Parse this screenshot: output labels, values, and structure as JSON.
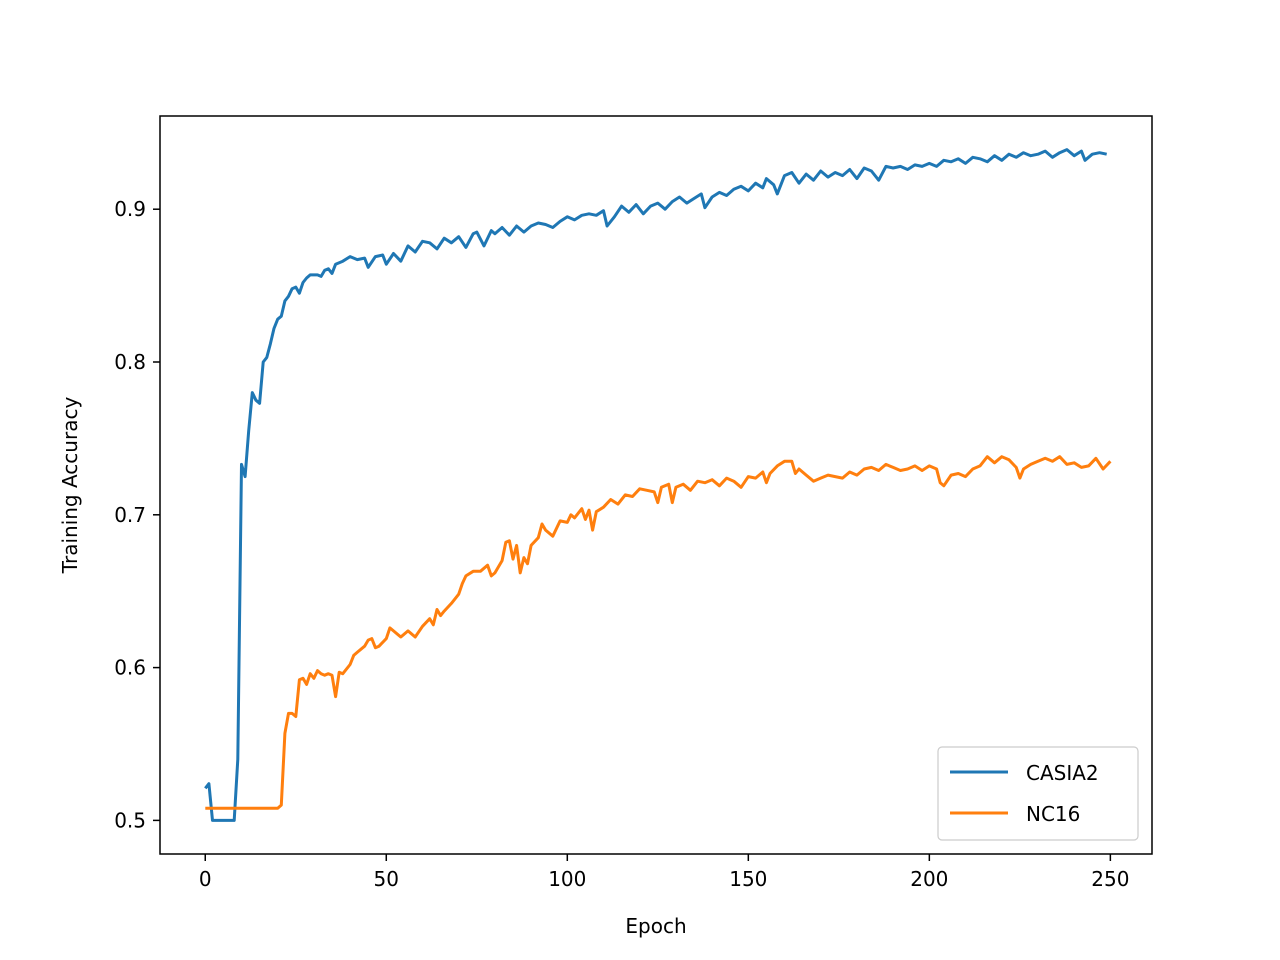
{
  "chart_data": {
    "type": "line",
    "title": "",
    "xlabel": "Epoch",
    "ylabel": "Training Accuracy",
    "xlim": [
      -12.5,
      261.5
    ],
    "ylim": [
      0.478,
      0.961
    ],
    "xticks": [
      0,
      50,
      100,
      150,
      200,
      250
    ],
    "yticks": [
      0.5,
      0.6,
      0.7,
      0.8,
      0.9
    ],
    "ytick_labels": [
      "0.5",
      "0.6",
      "0.7",
      "0.8",
      "0.9"
    ],
    "grid": false,
    "legend_position": "lower-right",
    "series": [
      {
        "name": "CASIA2",
        "color": "#1f77b4",
        "points": [
          [
            0,
            0.521
          ],
          [
            1,
            0.524
          ],
          [
            2,
            0.5
          ],
          [
            3,
            0.5
          ],
          [
            5,
            0.5
          ],
          [
            8,
            0.5
          ],
          [
            9,
            0.54
          ],
          [
            10,
            0.733
          ],
          [
            11,
            0.725
          ],
          [
            12,
            0.755
          ],
          [
            13,
            0.78
          ],
          [
            14,
            0.775
          ],
          [
            15,
            0.773
          ],
          [
            16,
            0.8
          ],
          [
            17,
            0.803
          ],
          [
            18,
            0.812
          ],
          [
            19,
            0.822
          ],
          [
            20,
            0.828
          ],
          [
            21,
            0.83
          ],
          [
            22,
            0.84
          ],
          [
            23,
            0.843
          ],
          [
            24,
            0.848
          ],
          [
            25,
            0.849
          ],
          [
            26,
            0.845
          ],
          [
            27,
            0.852
          ],
          [
            28,
            0.855
          ],
          [
            29,
            0.857
          ],
          [
            30,
            0.857
          ],
          [
            31,
            0.857
          ],
          [
            32,
            0.856
          ],
          [
            33,
            0.86
          ],
          [
            34,
            0.861
          ],
          [
            35,
            0.858
          ],
          [
            36,
            0.864
          ],
          [
            38,
            0.866
          ],
          [
            40,
            0.869
          ],
          [
            42,
            0.867
          ],
          [
            44,
            0.868
          ],
          [
            45,
            0.862
          ],
          [
            47,
            0.869
          ],
          [
            49,
            0.87
          ],
          [
            50,
            0.864
          ],
          [
            52,
            0.871
          ],
          [
            54,
            0.866
          ],
          [
            56,
            0.876
          ],
          [
            58,
            0.872
          ],
          [
            60,
            0.879
          ],
          [
            62,
            0.878
          ],
          [
            64,
            0.874
          ],
          [
            66,
            0.881
          ],
          [
            68,
            0.878
          ],
          [
            70,
            0.882
          ],
          [
            72,
            0.875
          ],
          [
            74,
            0.884
          ],
          [
            75,
            0.885
          ],
          [
            77,
            0.876
          ],
          [
            79,
            0.886
          ],
          [
            80,
            0.884
          ],
          [
            82,
            0.888
          ],
          [
            84,
            0.883
          ],
          [
            86,
            0.889
          ],
          [
            88,
            0.885
          ],
          [
            90,
            0.889
          ],
          [
            92,
            0.891
          ],
          [
            94,
            0.89
          ],
          [
            96,
            0.888
          ],
          [
            98,
            0.892
          ],
          [
            100,
            0.895
          ],
          [
            102,
            0.893
          ],
          [
            104,
            0.896
          ],
          [
            106,
            0.897
          ],
          [
            108,
            0.896
          ],
          [
            110,
            0.899
          ],
          [
            111,
            0.889
          ],
          [
            113,
            0.895
          ],
          [
            115,
            0.902
          ],
          [
            117,
            0.898
          ],
          [
            119,
            0.903
          ],
          [
            121,
            0.897
          ],
          [
            123,
            0.902
          ],
          [
            125,
            0.904
          ],
          [
            127,
            0.9
          ],
          [
            129,
            0.905
          ],
          [
            131,
            0.908
          ],
          [
            133,
            0.904
          ],
          [
            135,
            0.907
          ],
          [
            137,
            0.91
          ],
          [
            138,
            0.901
          ],
          [
            140,
            0.908
          ],
          [
            142,
            0.911
          ],
          [
            144,
            0.909
          ],
          [
            146,
            0.913
          ],
          [
            148,
            0.915
          ],
          [
            150,
            0.912
          ],
          [
            152,
            0.917
          ],
          [
            154,
            0.914
          ],
          [
            155,
            0.92
          ],
          [
            157,
            0.916
          ],
          [
            158,
            0.91
          ],
          [
            160,
            0.922
          ],
          [
            162,
            0.924
          ],
          [
            164,
            0.917
          ],
          [
            166,
            0.923
          ],
          [
            168,
            0.919
          ],
          [
            170,
            0.925
          ],
          [
            172,
            0.921
          ],
          [
            174,
            0.924
          ],
          [
            176,
            0.922
          ],
          [
            178,
            0.926
          ],
          [
            180,
            0.92
          ],
          [
            182,
            0.927
          ],
          [
            184,
            0.925
          ],
          [
            186,
            0.919
          ],
          [
            188,
            0.928
          ],
          [
            190,
            0.927
          ],
          [
            192,
            0.928
          ],
          [
            194,
            0.926
          ],
          [
            196,
            0.929
          ],
          [
            198,
            0.928
          ],
          [
            200,
            0.93
          ],
          [
            202,
            0.928
          ],
          [
            204,
            0.932
          ],
          [
            206,
            0.931
          ],
          [
            208,
            0.933
          ],
          [
            210,
            0.93
          ],
          [
            212,
            0.934
          ],
          [
            214,
            0.933
          ],
          [
            216,
            0.931
          ],
          [
            218,
            0.935
          ],
          [
            220,
            0.932
          ],
          [
            222,
            0.936
          ],
          [
            224,
            0.934
          ],
          [
            226,
            0.937
          ],
          [
            228,
            0.935
          ],
          [
            230,
            0.936
          ],
          [
            232,
            0.938
          ],
          [
            234,
            0.934
          ],
          [
            236,
            0.937
          ],
          [
            238,
            0.939
          ],
          [
            240,
            0.935
          ],
          [
            242,
            0.938
          ],
          [
            243,
            0.932
          ],
          [
            245,
            0.936
          ],
          [
            247,
            0.937
          ],
          [
            249,
            0.936
          ]
        ]
      },
      {
        "name": "NC16",
        "color": "#ff7f0e",
        "points": [
          [
            0,
            0.508
          ],
          [
            5,
            0.508
          ],
          [
            10,
            0.508
          ],
          [
            15,
            0.508
          ],
          [
            20,
            0.508
          ],
          [
            21,
            0.51
          ],
          [
            22,
            0.557
          ],
          [
            23,
            0.57
          ],
          [
            24,
            0.57
          ],
          [
            25,
            0.568
          ],
          [
            26,
            0.592
          ],
          [
            27,
            0.593
          ],
          [
            28,
            0.589
          ],
          [
            29,
            0.596
          ],
          [
            30,
            0.593
          ],
          [
            31,
            0.598
          ],
          [
            32,
            0.596
          ],
          [
            33,
            0.595
          ],
          [
            34,
            0.596
          ],
          [
            35,
            0.595
          ],
          [
            36,
            0.581
          ],
          [
            37,
            0.597
          ],
          [
            38,
            0.596
          ],
          [
            40,
            0.602
          ],
          [
            41,
            0.608
          ],
          [
            42,
            0.61
          ],
          [
            44,
            0.614
          ],
          [
            45,
            0.618
          ],
          [
            46,
            0.619
          ],
          [
            47,
            0.613
          ],
          [
            48,
            0.614
          ],
          [
            50,
            0.619
          ],
          [
            51,
            0.626
          ],
          [
            52,
            0.624
          ],
          [
            54,
            0.62
          ],
          [
            56,
            0.624
          ],
          [
            58,
            0.62
          ],
          [
            60,
            0.627
          ],
          [
            62,
            0.632
          ],
          [
            63,
            0.628
          ],
          [
            64,
            0.638
          ],
          [
            65,
            0.634
          ],
          [
            66,
            0.637
          ],
          [
            68,
            0.642
          ],
          [
            70,
            0.648
          ],
          [
            71,
            0.655
          ],
          [
            72,
            0.66
          ],
          [
            74,
            0.663
          ],
          [
            76,
            0.663
          ],
          [
            78,
            0.667
          ],
          [
            79,
            0.66
          ],
          [
            80,
            0.662
          ],
          [
            82,
            0.67
          ],
          [
            83,
            0.682
          ],
          [
            84,
            0.683
          ],
          [
            85,
            0.671
          ],
          [
            86,
            0.68
          ],
          [
            87,
            0.662
          ],
          [
            88,
            0.672
          ],
          [
            89,
            0.668
          ],
          [
            90,
            0.68
          ],
          [
            92,
            0.685
          ],
          [
            93,
            0.694
          ],
          [
            94,
            0.69
          ],
          [
            96,
            0.686
          ],
          [
            98,
            0.696
          ],
          [
            100,
            0.695
          ],
          [
            101,
            0.7
          ],
          [
            102,
            0.698
          ],
          [
            104,
            0.704
          ],
          [
            105,
            0.697
          ],
          [
            106,
            0.703
          ],
          [
            107,
            0.69
          ],
          [
            108,
            0.702
          ],
          [
            110,
            0.705
          ],
          [
            112,
            0.71
          ],
          [
            114,
            0.707
          ],
          [
            116,
            0.713
          ],
          [
            118,
            0.712
          ],
          [
            120,
            0.717
          ],
          [
            122,
            0.716
          ],
          [
            124,
            0.715
          ],
          [
            125,
            0.708
          ],
          [
            126,
            0.718
          ],
          [
            128,
            0.72
          ],
          [
            129,
            0.708
          ],
          [
            130,
            0.718
          ],
          [
            132,
            0.72
          ],
          [
            134,
            0.716
          ],
          [
            136,
            0.722
          ],
          [
            138,
            0.721
          ],
          [
            140,
            0.723
          ],
          [
            142,
            0.719
          ],
          [
            144,
            0.724
          ],
          [
            146,
            0.722
          ],
          [
            148,
            0.718
          ],
          [
            150,
            0.725
          ],
          [
            152,
            0.724
          ],
          [
            154,
            0.728
          ],
          [
            155,
            0.721
          ],
          [
            156,
            0.727
          ],
          [
            158,
            0.732
          ],
          [
            160,
            0.735
          ],
          [
            162,
            0.735
          ],
          [
            163,
            0.727
          ],
          [
            164,
            0.73
          ],
          [
            166,
            0.726
          ],
          [
            168,
            0.722
          ],
          [
            170,
            0.724
          ],
          [
            172,
            0.726
          ],
          [
            174,
            0.725
          ],
          [
            176,
            0.724
          ],
          [
            178,
            0.728
          ],
          [
            180,
            0.726
          ],
          [
            182,
            0.73
          ],
          [
            184,
            0.731
          ],
          [
            186,
            0.729
          ],
          [
            188,
            0.733
          ],
          [
            190,
            0.731
          ],
          [
            192,
            0.729
          ],
          [
            194,
            0.73
          ],
          [
            196,
            0.732
          ],
          [
            198,
            0.729
          ],
          [
            200,
            0.732
          ],
          [
            202,
            0.73
          ],
          [
            203,
            0.721
          ],
          [
            204,
            0.719
          ],
          [
            206,
            0.726
          ],
          [
            208,
            0.727
          ],
          [
            210,
            0.725
          ],
          [
            212,
            0.73
          ],
          [
            214,
            0.732
          ],
          [
            216,
            0.738
          ],
          [
            218,
            0.734
          ],
          [
            220,
            0.738
          ],
          [
            222,
            0.736
          ],
          [
            224,
            0.731
          ],
          [
            225,
            0.724
          ],
          [
            226,
            0.73
          ],
          [
            228,
            0.733
          ],
          [
            230,
            0.735
          ],
          [
            232,
            0.737
          ],
          [
            234,
            0.735
          ],
          [
            236,
            0.738
          ],
          [
            238,
            0.733
          ],
          [
            240,
            0.734
          ],
          [
            242,
            0.731
          ],
          [
            244,
            0.732
          ],
          [
            246,
            0.737
          ],
          [
            248,
            0.73
          ],
          [
            250,
            0.735
          ]
        ]
      }
    ]
  }
}
